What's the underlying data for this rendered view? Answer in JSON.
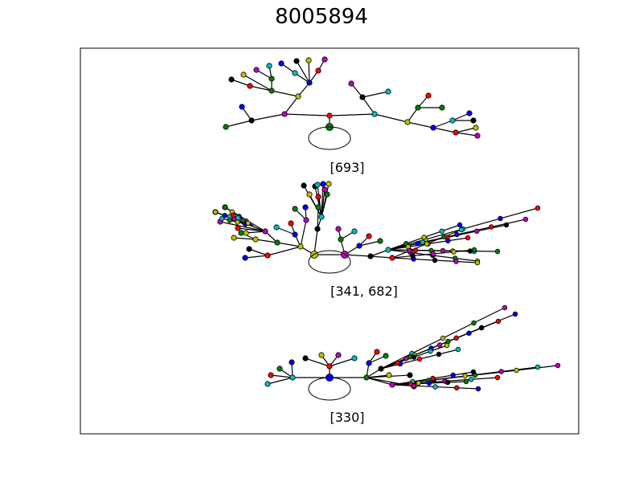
{
  "title": "8005894",
  "panels": [
    {
      "label": "[693]",
      "root_color": "#008000"
    },
    {
      "label": "[341, 682]",
      "root_color": "#bfbf00"
    },
    {
      "label": "[330]",
      "root_color": "#0000ff"
    }
  ],
  "palette": {
    "black": "#000000",
    "red": "#ff0000",
    "green": "#008000",
    "blue": "#0000ff",
    "cyan": "#00bfbf",
    "magenta": "#bf00bf",
    "yellow": "#bfbf00"
  }
}
